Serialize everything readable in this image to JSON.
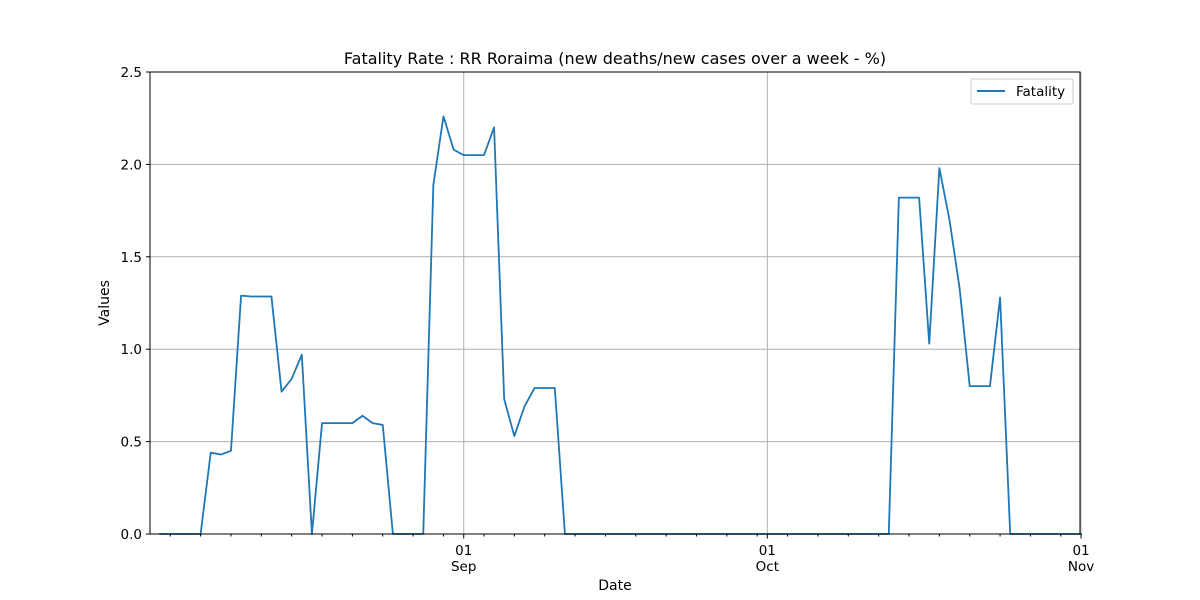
{
  "chart_data": {
    "type": "line",
    "title": "Fatality Rate : RR Roraima (new deaths/new cases over a week - %)",
    "xlabel": "Date",
    "ylabel": "Values",
    "ylim": [
      0,
      2.5
    ],
    "xlim": [
      "2020-08-01",
      "2020-11-01"
    ],
    "grid": true,
    "legend": "top-right",
    "y_ticks": [
      {
        "value": 0.0,
        "label": "0.0"
      },
      {
        "value": 0.5,
        "label": "0.5"
      },
      {
        "value": 1.0,
        "label": "1.0"
      },
      {
        "value": 1.5,
        "label": "1.5"
      },
      {
        "value": 2.0,
        "label": "2.0"
      },
      {
        "value": 2.5,
        "label": "2.5"
      }
    ],
    "x_major_ticks": [
      {
        "date": "2020-09-01",
        "label": "01",
        "sublabel": "Sep"
      },
      {
        "date": "2020-10-01",
        "label": "01",
        "sublabel": "Oct"
      },
      {
        "date": "2020-11-01",
        "label": "01",
        "sublabel": "Nov"
      }
    ],
    "x_minor_ticks": [
      "2020-08-03",
      "2020-08-06",
      "2020-08-09",
      "2020-08-12",
      "2020-08-15",
      "2020-08-18",
      "2020-08-21",
      "2020-08-24",
      "2020-08-27",
      "2020-08-30",
      "2020-09-03",
      "2020-09-06",
      "2020-09-09",
      "2020-09-12",
      "2020-09-15",
      "2020-09-18",
      "2020-09-21",
      "2020-09-24",
      "2020-09-27",
      "2020-09-30",
      "2020-10-03",
      "2020-10-06",
      "2020-10-09",
      "2020-10-12",
      "2020-10-15",
      "2020-10-18",
      "2020-10-21",
      "2020-10-24",
      "2020-10-27",
      "2020-10-30"
    ],
    "series": [
      {
        "name": "Fatality",
        "color": "#1f77b4",
        "x": [
          "2020-08-02",
          "2020-08-03",
          "2020-08-04",
          "2020-08-05",
          "2020-08-06",
          "2020-08-07",
          "2020-08-08",
          "2020-08-09",
          "2020-08-10",
          "2020-08-11",
          "2020-08-12",
          "2020-08-13",
          "2020-08-14",
          "2020-08-15",
          "2020-08-16",
          "2020-08-17",
          "2020-08-18",
          "2020-08-19",
          "2020-08-20",
          "2020-08-21",
          "2020-08-22",
          "2020-08-23",
          "2020-08-24",
          "2020-08-25",
          "2020-08-26",
          "2020-08-27",
          "2020-08-28",
          "2020-08-29",
          "2020-08-30",
          "2020-08-31",
          "2020-09-01",
          "2020-09-02",
          "2020-09-03",
          "2020-09-04",
          "2020-09-05",
          "2020-09-06",
          "2020-09-07",
          "2020-09-08",
          "2020-09-09",
          "2020-09-10",
          "2020-09-11",
          "2020-09-12",
          "2020-09-13",
          "2020-09-14",
          "2020-09-15",
          "2020-09-16",
          "2020-09-17",
          "2020-09-18",
          "2020-09-19",
          "2020-09-20",
          "2020-09-21",
          "2020-09-22",
          "2020-09-23",
          "2020-09-24",
          "2020-09-25",
          "2020-09-26",
          "2020-09-27",
          "2020-09-28",
          "2020-09-29",
          "2020-09-30",
          "2020-10-01",
          "2020-10-02",
          "2020-10-03",
          "2020-10-04",
          "2020-10-05",
          "2020-10-06",
          "2020-10-07",
          "2020-10-08",
          "2020-10-09",
          "2020-10-10",
          "2020-10-11",
          "2020-10-12",
          "2020-10-13",
          "2020-10-14",
          "2020-10-15",
          "2020-10-16",
          "2020-10-17",
          "2020-10-18",
          "2020-10-19",
          "2020-10-20",
          "2020-10-21",
          "2020-10-22",
          "2020-10-23",
          "2020-10-24",
          "2020-10-25",
          "2020-10-26",
          "2020-10-27",
          "2020-10-28",
          "2020-10-29",
          "2020-10-30",
          "2020-10-31",
          "2020-11-01"
        ],
        "values": [
          0,
          0,
          0,
          0,
          0,
          0.44,
          0.43,
          0.45,
          1.29,
          1.285,
          1.285,
          1.285,
          0.77,
          0.84,
          0.97,
          0,
          0.6,
          0.6,
          0.6,
          0.6,
          0.64,
          0.6,
          0.59,
          0,
          0,
          0,
          0,
          1.89,
          2.26,
          2.08,
          2.05,
          2.05,
          2.05,
          2.2,
          0.73,
          0.53,
          0.69,
          0.79,
          0.79,
          0.79,
          0,
          0,
          0,
          0,
          0,
          0,
          0,
          0,
          0,
          0,
          0,
          0,
          0,
          0,
          0,
          0,
          0,
          0,
          0,
          0,
          0,
          0,
          0,
          0,
          0,
          0,
          0,
          0,
          0,
          0,
          0,
          0,
          0,
          1.82,
          1.82,
          1.82,
          1.03,
          1.98,
          1.7,
          1.33,
          0.8,
          0.8,
          0.8,
          1.28,
          0,
          0,
          0,
          0,
          0,
          0,
          0,
          0
        ]
      }
    ]
  }
}
